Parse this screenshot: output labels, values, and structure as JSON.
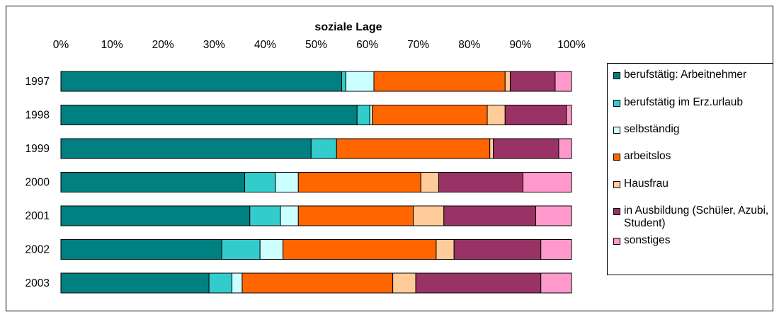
{
  "chart_data": {
    "type": "bar",
    "orientation": "horizontal",
    "stacked": "percent",
    "title": "soziale Lage",
    "xlim": [
      0,
      100
    ],
    "x_ticks": [
      "0%",
      "10%",
      "20%",
      "30%",
      "40%",
      "50%",
      "60%",
      "70%",
      "80%",
      "90%",
      "100%"
    ],
    "categories": [
      "1997",
      "1998",
      "1999",
      "2000",
      "2001",
      "2002",
      "2003"
    ],
    "legend_position": "right",
    "grid": false,
    "series": [
      {
        "name": "berufstätig: Arbeitnehmer",
        "color": "#008080",
        "values": [
          55,
          58,
          49,
          36,
          37,
          31.5,
          29
        ]
      },
      {
        "name": "berufstätig im Erz.urlaub",
        "color": "#33CCCC",
        "values": [
          0.8,
          2.5,
          5,
          6,
          6,
          7.5,
          4.5
        ]
      },
      {
        "name": "selbständig",
        "color": "#CCFFFF",
        "values": [
          5.5,
          0.5,
          0,
          4.5,
          3.5,
          4.5,
          2
        ]
      },
      {
        "name": "arbeitslos",
        "color": "#FF6600",
        "values": [
          25.7,
          22.5,
          30,
          24,
          22.5,
          30,
          29.5
        ]
      },
      {
        "name": "Hausfrau",
        "color": "#FFCC99",
        "values": [
          1,
          3.5,
          0.7,
          3.5,
          6,
          3.5,
          4.5
        ]
      },
      {
        "name": "in Ausbildung (Schüler, Azubi, Student)",
        "color": "#993366",
        "values": [
          8.8,
          12,
          12.8,
          16.5,
          18,
          17,
          24.5
        ]
      },
      {
        "name": "sonstiges",
        "color": "#FF99CC",
        "values": [
          3.2,
          1,
          2.5,
          9.5,
          7,
          6,
          6
        ]
      }
    ]
  }
}
